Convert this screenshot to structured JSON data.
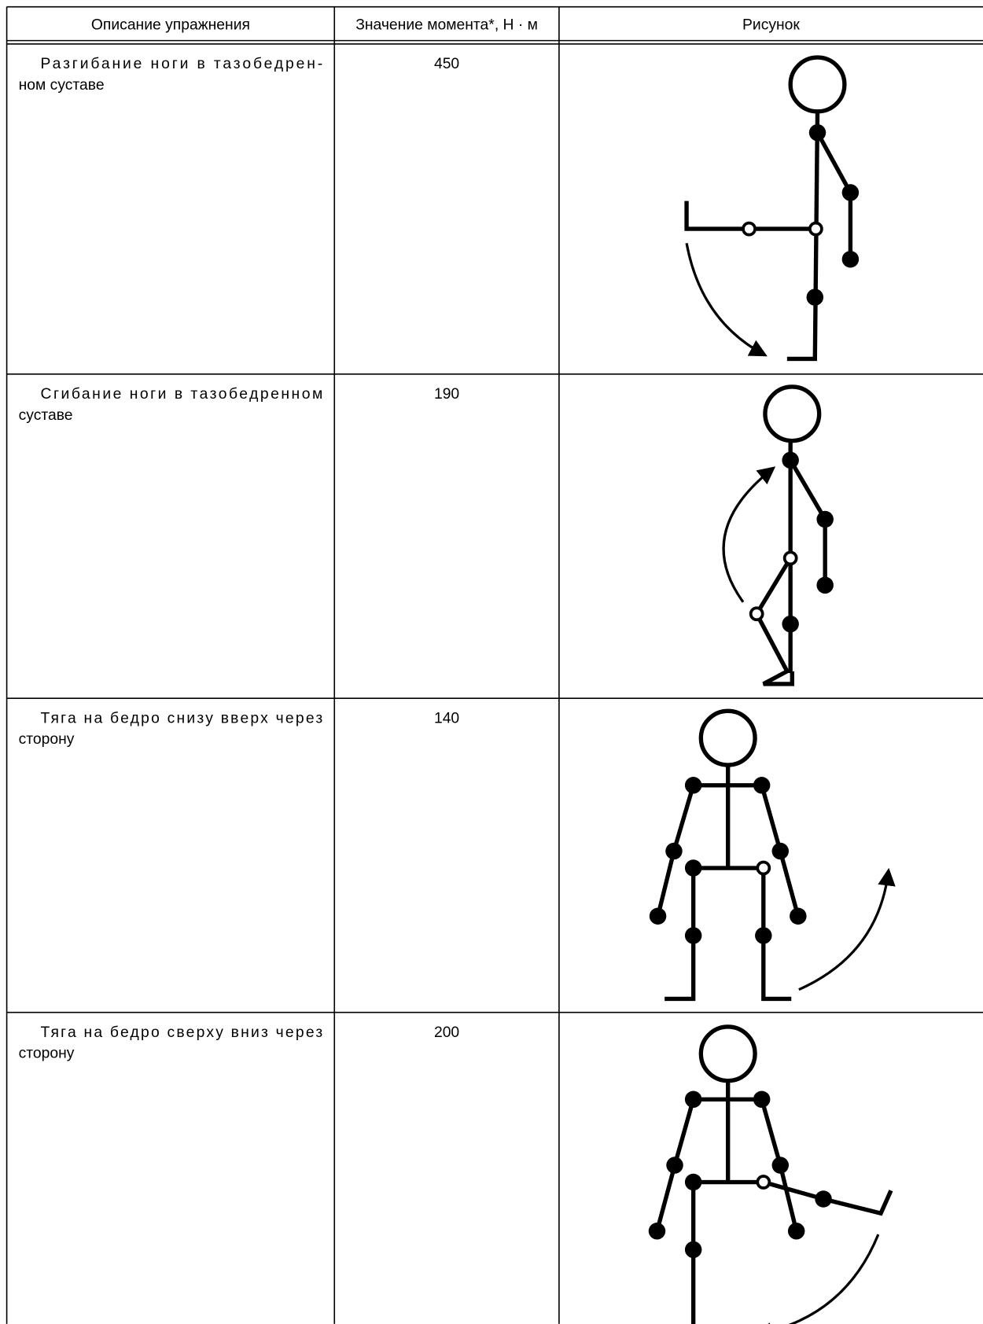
{
  "table": {
    "header": [
      "Описание упражнения",
      "Значение момента*, Н · м",
      "Рисунок"
    ],
    "rows": [
      {
        "description": [
          "Разгибание ноги в тазобедрен-",
          "ном суставе"
        ],
        "moment": 450
      },
      {
        "description": [
          "Сгибание ноги в тазобедренном",
          "суставе"
        ],
        "moment": 190
      },
      {
        "description": [
          "Тяга на бедро снизу вверх через",
          "сторону"
        ],
        "moment": 140
      },
      {
        "description": [
          "Тяга на бедро сверху вниз через",
          "сторону"
        ],
        "moment": 200
      }
    ]
  }
}
